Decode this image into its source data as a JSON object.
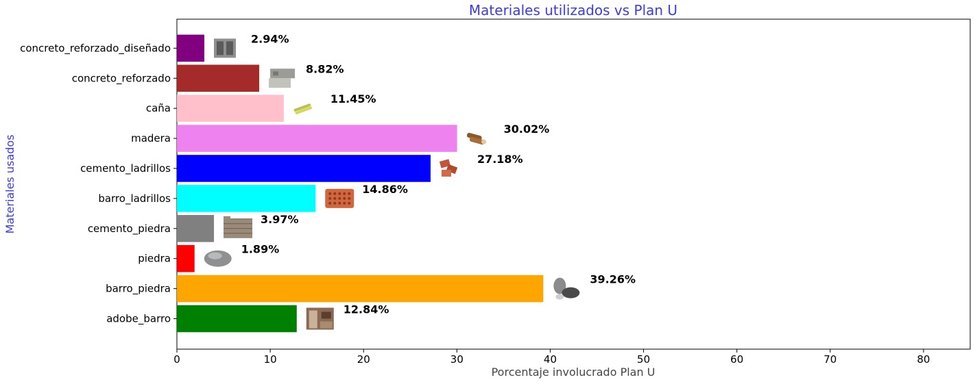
{
  "chart_data": {
    "type": "bar",
    "orientation": "horizontal",
    "title": "Materiales utilizados vs Plan U",
    "xlabel": "Porcentaje involucrado Plan U",
    "ylabel": "Materiales usados",
    "title_color": "#3b3bdf",
    "xlim": [
      0,
      85
    ],
    "xticks": [
      "0",
      "10",
      "20",
      "30",
      "40",
      "50",
      "60",
      "70",
      "80"
    ],
    "grid": false,
    "categories": [
      "adobe_barro",
      "barro_piedra",
      "piedra",
      "cemento_piedra",
      "barro_ladrillos",
      "cemento_ladrillos",
      "madera",
      "caña",
      "concreto_reforzado",
      "concreto_reforzado_diseñado"
    ],
    "values": [
      12.84,
      39.26,
      1.89,
      3.97,
      14.86,
      27.18,
      30.02,
      11.45,
      8.82,
      2.94
    ],
    "labels": [
      "12.84%",
      "39.26%",
      "1.89%",
      "3.97%",
      "14.86%",
      "27.18%",
      "30.02%",
      "11.45%",
      "8.82%",
      "2.94%"
    ],
    "colors": [
      "#008000",
      "#ffa500",
      "#ff0000",
      "#808080",
      "#00ffff",
      "#0000ff",
      "#ee82ee",
      "#ffc0cb",
      "#a52a2a",
      "#800080"
    ],
    "icons": [
      "adobe-wall-icon",
      "river-stones-icon",
      "stone-icon",
      "stone-wall-icon",
      "hollow-brick-icon",
      "bricks-icon",
      "logs-icon",
      "cane-icon",
      "concrete-blocks-icon",
      "concrete-block-icon"
    ]
  }
}
